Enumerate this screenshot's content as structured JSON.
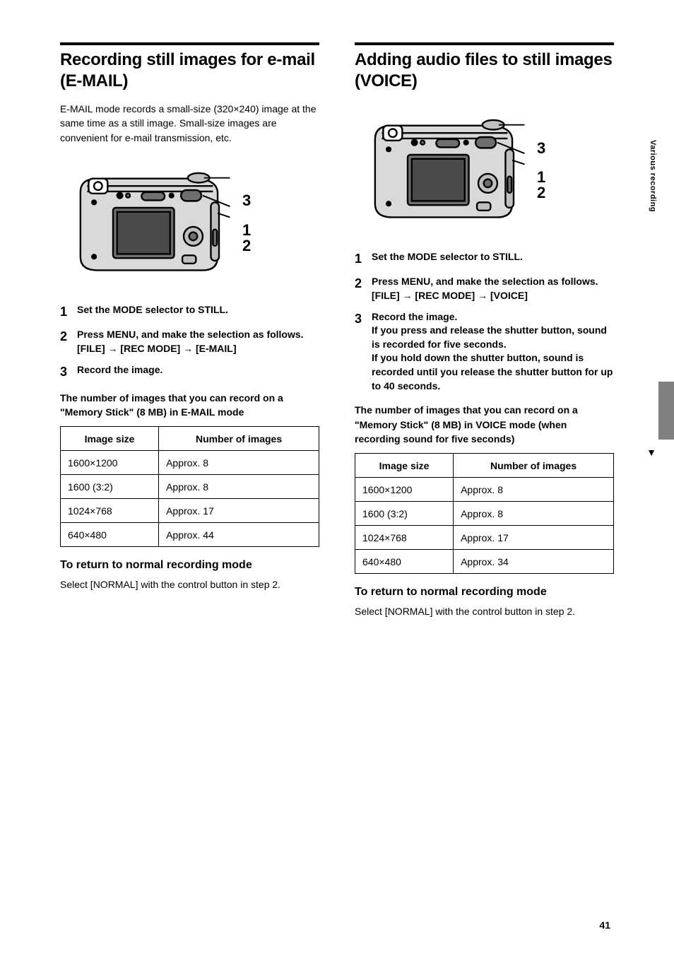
{
  "page_number": "41",
  "sidebar": {
    "label": "Various recording",
    "tab_color": "#808080",
    "arrow": "▼"
  },
  "left": {
    "title": "Recording still images for e-mail (E-MAIL)",
    "callouts": [
      "3",
      "1",
      "2"
    ],
    "intro": "E-MAIL mode records a small-size (320×240) image at the same time as a still image. Small-size images are convenient for e-mail transmission, etc.",
    "steps": [
      {
        "num": "1",
        "text": "Set the MODE selector to STILL."
      },
      {
        "num": "2",
        "html": "Press MENU, and make the selection as follows.<br>[FILE] → [REC MODE] → [E-MAIL]"
      },
      {
        "num": "3",
        "text": "Record the image."
      }
    ],
    "table_caption": "The number of images that you can record on a \"Memory Stick\" (8 MB) in E-MAIL mode",
    "table": {
      "headers": [
        "Image size",
        "Number of images"
      ],
      "rows": [
        [
          "1600×1200",
          "Approx. 8"
        ],
        [
          "1600 (3:2)",
          "Approx. 8"
        ],
        [
          "1024×768",
          "Approx. 17"
        ],
        [
          "640×480",
          "Approx. 44"
        ]
      ]
    },
    "sub_title": "To return to normal recording mode",
    "sub_text": "Select [NORMAL] with the control button in step 2."
  },
  "right": {
    "title": "Adding audio files to still images (VOICE)",
    "callouts": [
      "3",
      "1",
      "2"
    ],
    "steps": [
      {
        "num": "1",
        "text": "Set the MODE selector to STILL."
      },
      {
        "num": "2",
        "html": "Press MENU, and make the selection as follows.<br>[FILE] → [REC MODE] → [VOICE]"
      },
      {
        "num": "3",
        "html": "Record the image.<br>If you press and release the shutter button, sound is recorded for five seconds.<br>If you hold down the shutter button, sound is recorded until you release the shutter button for up to 40 seconds."
      }
    ],
    "table_caption": "The number of images that you can record on a \"Memory Stick\" (8 MB) in VOICE mode (when recording sound for five seconds)",
    "table": {
      "headers": [
        "Image size",
        "Number of images"
      ],
      "rows": [
        [
          "1600×1200",
          "Approx. 8"
        ],
        [
          "1600 (3:2)",
          "Approx. 8"
        ],
        [
          "1024×768",
          "Approx. 17"
        ],
        [
          "640×480",
          "Approx. 34"
        ]
      ]
    },
    "sub_title": "To return to normal recording mode",
    "sub_text": "Select [NORMAL] with the control button in step 2."
  },
  "camera_svg": {
    "stroke": "#000000",
    "fill_body": "#d9d9d9",
    "fill_dark": "#6f6f6f",
    "fill_screen": "#4a4a4a"
  }
}
